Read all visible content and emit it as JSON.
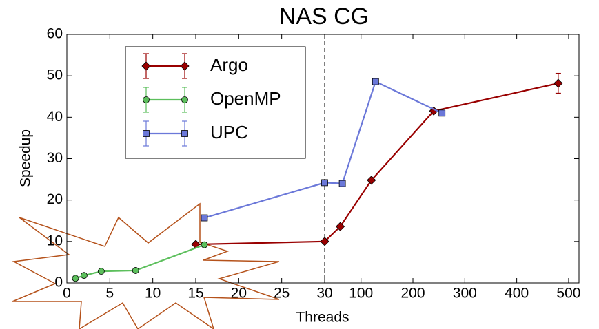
{
  "chart_data": {
    "type": "line",
    "title": "NAS CG",
    "x_label": "Threads",
    "y_label": "Speedup",
    "xlim": [
      0,
      520
    ],
    "x_break": 30,
    "ylim": [
      0,
      60
    ],
    "xticks": [
      0,
      5,
      10,
      15,
      20,
      25,
      30,
      100,
      200,
      300,
      400,
      500
    ],
    "yticks": [
      0,
      10,
      20,
      30,
      40,
      50,
      60
    ],
    "grid": false,
    "legend": "upper left",
    "series": [
      {
        "name": "Argo",
        "color": "#990000",
        "marker": "diamond",
        "x": [
          15,
          30,
          60,
          120,
          240,
          480
        ],
        "values": [
          9.3,
          10,
          13.6,
          24.8,
          41.5,
          48.2
        ],
        "errors": [
          0,
          0,
          0,
          0,
          0,
          2.4
        ]
      },
      {
        "name": "OpenMP",
        "color": "#5cbf5c",
        "marker": "circle",
        "x": [
          1,
          2,
          4,
          8,
          16
        ],
        "values": [
          1.1,
          1.8,
          2.8,
          3.0,
          9.2
        ]
      },
      {
        "name": "UPC",
        "color": "#6b78d9",
        "marker": "square",
        "x": [
          16,
          30,
          64,
          128,
          256
        ],
        "values": [
          15.7,
          24.2,
          24,
          48.6,
          41
        ]
      }
    ]
  }
}
